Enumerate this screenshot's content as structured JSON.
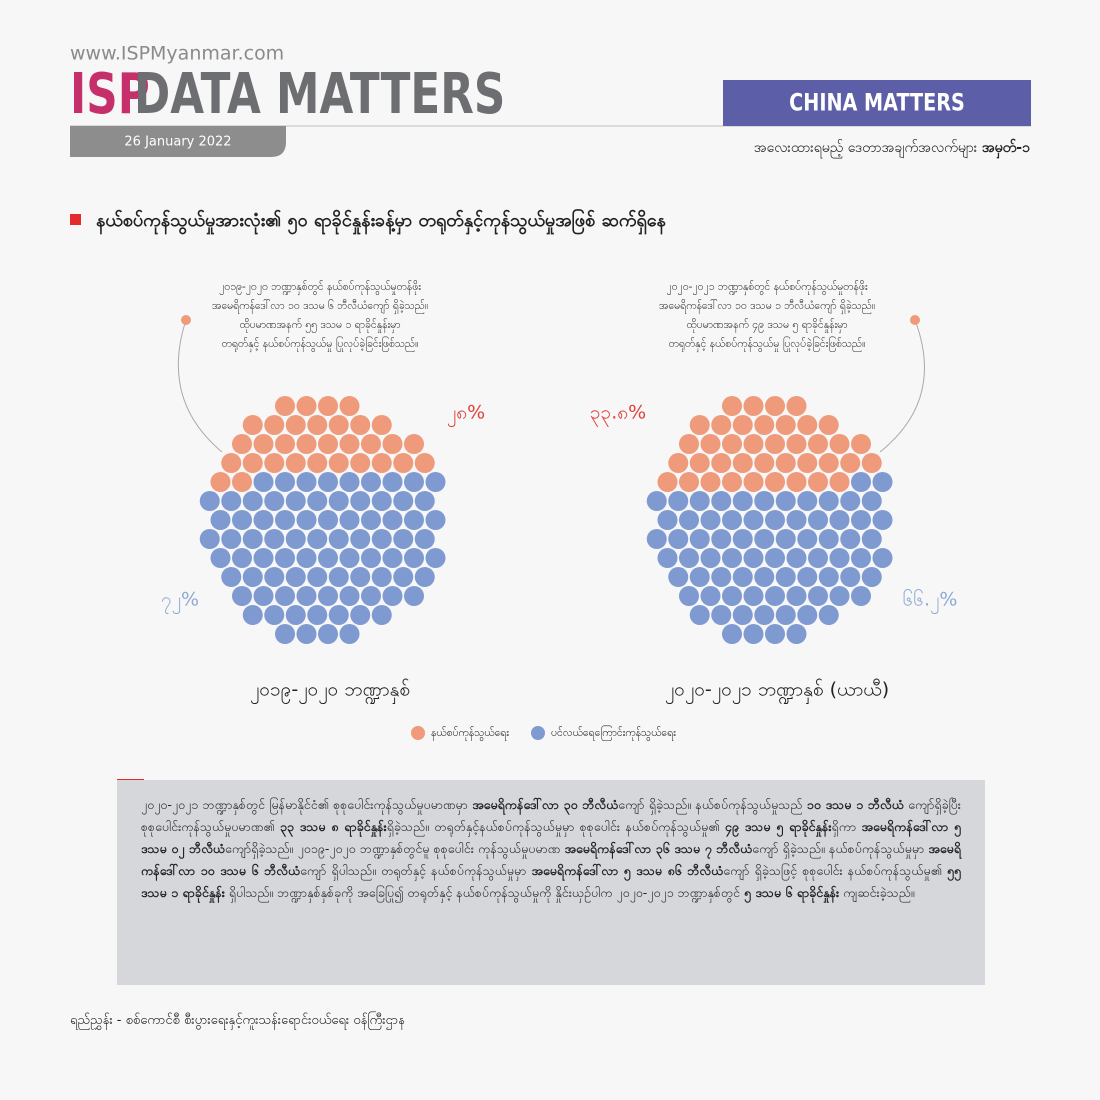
{
  "header": {
    "website": "www.ISPMyanmar.com",
    "logo_isp": "ISP",
    "logo_text": "DATA MATTERS",
    "date": "26 January 2022",
    "section": "CHINA MATTERS",
    "series_label": "အလေးထားရမည့် ဒေတာအချက်အလက်များ",
    "series_number": "အမှတ်-၁"
  },
  "headline": "နယ်စပ်ကုန်သွယ်မှုအားလုံး၏ ၅၀ ရာခိုင်နှုန်းခန့်မှာ တရုတ်နှင့်ကုန်သွယ်မှုအဖြစ် ဆက်ရှိနေ",
  "legend": [
    {
      "name": "နယ်စပ်ကုန်သွယ်ရေး",
      "color": "#ee9a7b"
    },
    {
      "name": "ပင်လယ်ရေကြောင်းကုန်သွယ်ရေး",
      "color": "#7f9ad0"
    }
  ],
  "chart_data": [
    {
      "type": "waffle",
      "title": "၂၀၁၉-၂၀၂၀ ဘဏ္ဍာနှစ်",
      "annotation": [
        "၂၀၁၉-၂၀၂၀ ဘဏ္ဍာနှစ်တွင် နယ်စပ်ကုန်သွယ်မှုတန်ဖိုး",
        "အမေရိကန်ဒေါ်လာ ၁၀ ဒသမ ၆ ဘီလီယံကျော် ရှိခဲ့သည်။",
        "ထိုပမာဏအနက် ၅၅ ဒသမ ၁ ရာခိုင်နှုန်းမှာ",
        "တရုတ်နှင့် နယ်စပ်ကုန်သွယ်မှု ပြုလုပ်ခဲ့ခြင်းဖြစ်သည်။"
      ],
      "values": [
        28,
        72
      ],
      "value_labels": [
        "၂၈%",
        "၇၂%"
      ],
      "colors": [
        "#ee9a7b",
        "#7f9ad0"
      ]
    },
    {
      "type": "waffle",
      "title": "၂၀၂၀-၂၀၂၁ ဘဏ္ဍာနှစ် (ယာယီ)",
      "annotation": [
        "၂၀၂၀-၂၀၂၁ ဘဏ္ဍာနှစ်တွင် နယ်စပ်ကုန်သွယ်မှုတန်ဖိုး",
        "အမေရိကန်ဒေါ်လာ ၁၀ ဒသမ ၁ ဘီလီယံကျော် ရှိခဲ့သည်။",
        "ထိုပမာဏအနက် ၄၉ ဒသမ ၅ ရာခိုင်နှုန်းမှာ",
        "တရုတ်နှင့် နယ်စပ်ကုန်သွယ်မှု ပြုလုပ်ခဲ့ခြင်းဖြစ်သည်။"
      ],
      "values": [
        33.8,
        66.2
      ],
      "value_labels": [
        "၃၃.၈%",
        "၆၆.၂%"
      ],
      "colors": [
        "#ee9a7b",
        "#7f9ad0"
      ]
    }
  ],
  "paragraph": [
    {
      "text": "၂၀၂၀-၂၀၂၁ ဘဏ္ဍာနှစ်တွင် မြန်မာနိုင်ငံ၏ စုစုပေါင်းကုန်သွယ်မှုပမာဏမှာ ",
      "bold": false
    },
    {
      "text": "အမေရိကန်ဒေါ်လာ ၃၀ ဘီလီယံ",
      "bold": true
    },
    {
      "text": "ကျော် ရှိခဲ့သည်။ နယ်စပ်ကုန်သွယ်မှုသည် ",
      "bold": false
    },
    {
      "text": "၁၀ ဒသမ ၁ ဘီလီယံ",
      "bold": true
    },
    {
      "text": " ကျော်ရှိခဲ့ပြီး စုစုပေါင်းကုန်သွယ်မှုပမာဏ၏ ",
      "bold": false
    },
    {
      "text": "၃၃ ဒသမ ၈ ရာခိုင်နှုန်း",
      "bold": true
    },
    {
      "text": "ရှိခဲ့သည်။ တရုတ်နှင့်နယ်စပ်ကုန်သွယ်မှုမှာ စုစုပေါင်း နယ်စပ်ကုန်သွယ်မှု၏ ",
      "bold": false
    },
    {
      "text": "၄၉ ဒသမ ၅ ရာခိုင်နှုန်း",
      "bold": true
    },
    {
      "text": "ရှိကာ ",
      "bold": false
    },
    {
      "text": "အမေရိကန်ဒေါ်လာ ၅ ဒသမ ၀၂ ဘီလီယံ",
      "bold": true
    },
    {
      "text": "ကျော်ရှိခဲ့သည်။ ၂၀၁၉-၂၀၂၀ ဘဏ္ဍာနှစ်တွင်မူ စုစုပေါင်း ကုန်သွယ်မှုပမာဏ ",
      "bold": false
    },
    {
      "text": "အမေရိကန်ဒေါ်လာ ၃၆ ဒသမ ၇ ဘီလီယံ",
      "bold": true
    },
    {
      "text": "ကျော် ရှိခဲ့သည်။ နယ်စပ်ကုန်သွယ်မှုမှာ ",
      "bold": false
    },
    {
      "text": "အမေရိကန်ဒေါ်လာ ၁၀ ဒသမ ၆ ဘီလီယံ",
      "bold": true
    },
    {
      "text": "ကျော် ရှိပါသည်။ တရုတ်နှင့် နယ်စပ်ကုန်သွယ်မှုမှာ ",
      "bold": false
    },
    {
      "text": "အမေရိကန်ဒေါ်လာ ၅ ဒသမ ၈၆ ဘီလီယံ",
      "bold": true
    },
    {
      "text": "ကျော် ရှိခဲ့သဖြင့် စုစုပေါင်း နယ်စပ်ကုန်သွယ်မှု၏ ",
      "bold": false
    },
    {
      "text": "၅၅ ဒသမ ၁ ရာခိုင်နှုန်း",
      "bold": true
    },
    {
      "text": " ရှိပါသည်။ ဘဏ္ဍာနှစ်နှစ်ခုကို အခြေပြု၍ တရုတ်နှင့် နယ်စပ်ကုန်သွယ်မှုကို နှိုင်းယှဉ်ပါက ၂၀၂၀-၂၀၂၁ ဘဏ္ဍာနှစ်တွင် ",
      "bold": false
    },
    {
      "text": "၅ ဒသမ ၆ ရာခိုင်နှုန်း",
      "bold": true
    },
    {
      "text": " ကျဆင်းခဲ့သည်။",
      "bold": false
    }
  ],
  "source": "ရည်ညွှန်း - စစ်ကောင်စီ စီးပွားရေးနှင့်ကူးသန်းရောင်းဝယ်ရေး ဝန်ကြီးဌာန"
}
